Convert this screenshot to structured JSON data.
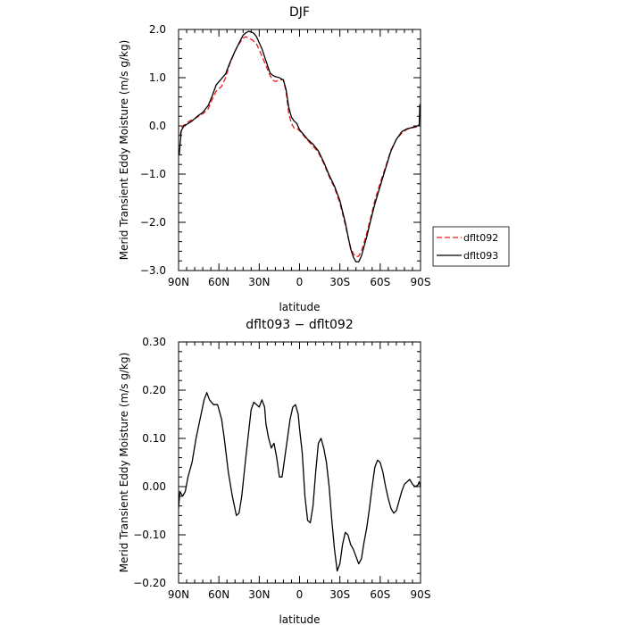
{
  "chart_data": [
    {
      "type": "line",
      "title": "DJF",
      "xlabel": "latitude",
      "ylabel": "Merid Transient Eddy Moisture (m/s g/kg)",
      "xlim": [
        90,
        -90
      ],
      "ylim": [
        -3.0,
        2.0
      ],
      "x_ticks": [
        90,
        60,
        30,
        0,
        -30,
        -60,
        -90
      ],
      "x_tick_labels": [
        "90N",
        "60N",
        "30N",
        "0",
        "30S",
        "60S",
        "90S"
      ],
      "y_ticks": [
        2.0,
        1.0,
        0.0,
        -1.0,
        -2.0,
        -3.0
      ],
      "y_tick_labels": [
        "2.0",
        "1.0",
        "0.0",
        "−1.0",
        "−2.0",
        "−3.0"
      ],
      "legend_position": "outside-right",
      "series": [
        {
          "name": "dflt092",
          "color": "#e41a1c",
          "dash": "dashed",
          "x": [
            89,
            87,
            85,
            82,
            78,
            75,
            72,
            68,
            65,
            62,
            58,
            55,
            52,
            48,
            45,
            42,
            40,
            38,
            35,
            32,
            28,
            25,
            22,
            20,
            18,
            15,
            12,
            10,
            8,
            6,
            4,
            2,
            0,
            -3,
            -6,
            -10,
            -14,
            -18,
            -22,
            -26,
            -30,
            -34,
            -36,
            -38,
            -40,
            -42,
            -44,
            -46,
            -48,
            -50,
            -53,
            -56,
            -60,
            -64,
            -68,
            -72,
            -76,
            -80,
            -84,
            -87,
            -89
          ],
          "y": [
            -0.2,
            0.0,
            0.03,
            0.1,
            0.15,
            0.2,
            0.25,
            0.35,
            0.55,
            0.72,
            0.82,
            1.0,
            1.28,
            1.55,
            1.7,
            1.82,
            1.85,
            1.82,
            1.78,
            1.7,
            1.45,
            1.25,
            1.05,
            0.95,
            0.92,
            0.95,
            0.96,
            0.7,
            0.25,
            0.05,
            -0.05,
            -0.05,
            -0.1,
            -0.2,
            -0.3,
            -0.42,
            -0.55,
            -0.78,
            -1.05,
            -1.28,
            -1.6,
            -2.05,
            -2.3,
            -2.52,
            -2.65,
            -2.72,
            -2.7,
            -2.6,
            -2.42,
            -2.22,
            -1.9,
            -1.55,
            -1.18,
            -0.85,
            -0.5,
            -0.28,
            -0.15,
            -0.07,
            -0.04,
            -0.02,
            0.0
          ]
        },
        {
          "name": "dflt093",
          "color": "#000000",
          "dash": "solid",
          "x": [
            89.5,
            88,
            86,
            84,
            80,
            76,
            72,
            68,
            65,
            62,
            58,
            55,
            52,
            48,
            45,
            42,
            40,
            38,
            36,
            34,
            32,
            28,
            25,
            22,
            20,
            18,
            15,
            12,
            10,
            8,
            6,
            4,
            2,
            0,
            -3,
            -6,
            -10,
            -14,
            -18,
            -22,
            -26,
            -30,
            -34,
            -36,
            -38,
            -40,
            -42,
            -44,
            -46,
            -48,
            -50,
            -53,
            -56,
            -60,
            -64,
            -68,
            -72,
            -76,
            -80,
            -84,
            -87,
            -89,
            -89.5
          ],
          "y": [
            -0.6,
            -0.1,
            0.0,
            0.03,
            0.1,
            0.2,
            0.28,
            0.42,
            0.62,
            0.85,
            0.98,
            1.08,
            1.3,
            1.55,
            1.72,
            1.88,
            1.93,
            1.96,
            1.95,
            1.92,
            1.85,
            1.6,
            1.35,
            1.1,
            1.05,
            1.02,
            1.0,
            0.95,
            0.75,
            0.38,
            0.18,
            0.1,
            0.05,
            -0.08,
            -0.18,
            -0.28,
            -0.38,
            -0.52,
            -0.75,
            -1.02,
            -1.25,
            -1.55,
            -2.0,
            -2.28,
            -2.55,
            -2.72,
            -2.82,
            -2.82,
            -2.7,
            -2.5,
            -2.3,
            -1.95,
            -1.62,
            -1.25,
            -0.88,
            -0.52,
            -0.28,
            -0.12,
            -0.06,
            -0.03,
            -0.01,
            0.02,
            0.45
          ]
        }
      ]
    },
    {
      "type": "line",
      "title": "dflt093 − dflt092",
      "xlabel": "latitude",
      "ylabel": "Merid Transient Eddy Moisture (m/s g/kg)",
      "xlim": [
        90,
        -90
      ],
      "ylim": [
        -0.2,
        0.3
      ],
      "x_ticks": [
        90,
        60,
        30,
        0,
        -30,
        -60,
        -90
      ],
      "x_tick_labels": [
        "90N",
        "60N",
        "30N",
        "0",
        "30S",
        "60S",
        "90S"
      ],
      "y_ticks": [
        0.3,
        0.2,
        0.1,
        0.0,
        -0.1,
        -0.2
      ],
      "y_tick_labels": [
        "0.30",
        "0.20",
        "0.10",
        "0.00",
        "−0.10",
        "−0.20"
      ],
      "series": [
        {
          "color": "#000000",
          "dash": "solid",
          "x": [
            90,
            89,
            87,
            85,
            83,
            80,
            77,
            74,
            71,
            69,
            67,
            64,
            61,
            58,
            56,
            53,
            50,
            47,
            45,
            43,
            40,
            38,
            36,
            34,
            32,
            30,
            28,
            26,
            25,
            23,
            21,
            19,
            17,
            15,
            13,
            11,
            9,
            7,
            5,
            3,
            1,
            0,
            -2,
            -4,
            -6,
            -8,
            -10,
            -12,
            -14,
            -16,
            -18,
            -20,
            -22,
            -24,
            -26,
            -28,
            -30,
            -32,
            -34,
            -36,
            -38,
            -40,
            -42,
            -44,
            -46,
            -48,
            -50,
            -52,
            -54,
            -56,
            -58,
            -60,
            -62,
            -64,
            -66,
            -68,
            -70,
            -72,
            -74,
            -76,
            -78,
            -80,
            -82,
            -84,
            -86,
            -88,
            -89,
            -90
          ],
          "y": [
            -0.045,
            -0.01,
            -0.02,
            -0.01,
            0.02,
            0.05,
            0.1,
            0.14,
            0.18,
            0.195,
            0.18,
            0.17,
            0.17,
            0.14,
            0.1,
            0.03,
            -0.02,
            -0.06,
            -0.055,
            -0.02,
            0.06,
            0.11,
            0.16,
            0.175,
            0.17,
            0.165,
            0.18,
            0.165,
            0.13,
            0.1,
            0.08,
            0.09,
            0.06,
            0.02,
            0.02,
            0.06,
            0.1,
            0.14,
            0.165,
            0.17,
            0.15,
            0.12,
            0.07,
            -0.02,
            -0.07,
            -0.075,
            -0.04,
            0.03,
            0.09,
            0.1,
            0.08,
            0.05,
            0.0,
            -0.07,
            -0.13,
            -0.175,
            -0.16,
            -0.12,
            -0.095,
            -0.1,
            -0.12,
            -0.13,
            -0.145,
            -0.16,
            -0.15,
            -0.115,
            -0.085,
            -0.045,
            0.0,
            0.04,
            0.055,
            0.05,
            0.03,
            0.0,
            -0.025,
            -0.045,
            -0.055,
            -0.05,
            -0.03,
            -0.01,
            0.005,
            0.01,
            0.015,
            0.005,
            0.0,
            0.003,
            0.01,
            0.0
          ]
        }
      ]
    }
  ]
}
